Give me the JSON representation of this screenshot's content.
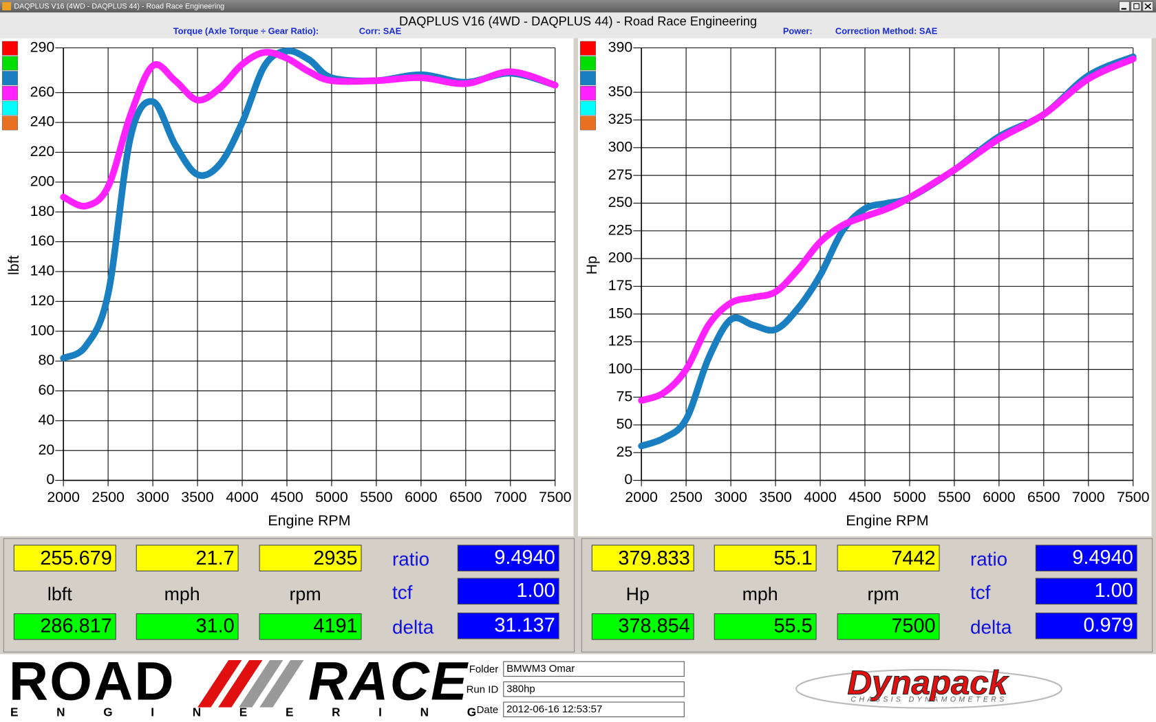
{
  "window": {
    "title": "DAQPLUS V16 (4WD - DAQPLUS 44) - Road Race Engineering"
  },
  "header": {
    "title": "DAQPLUS V16 (4WD - DAQPLUS 44) - Road Race Engineering"
  },
  "chart_data": [
    {
      "type": "line",
      "subtitle": "Torque (Axle Torque ÷ Gear Ratio):",
      "correction": "Corr: SAE",
      "x_label": "Engine RPM",
      "y_label": "lbft",
      "x": [
        2000,
        2250,
        2500,
        2750,
        3000,
        3250,
        3500,
        3750,
        4000,
        4250,
        4500,
        4750,
        5000,
        5500,
        6000,
        6500,
        7000,
        7500
      ],
      "series": [
        {
          "color": "#1a7fc0",
          "values": [
            82,
            90,
            125,
            230,
            254,
            225,
            205,
            212,
            240,
            278,
            288,
            282,
            270,
            268,
            272,
            267,
            273,
            265
          ]
        },
        {
          "color": "#ff22ff",
          "values": [
            190,
            184,
            197,
            245,
            278,
            268,
            255,
            263,
            279,
            287,
            283,
            274,
            268,
            268,
            270,
            266,
            274,
            265
          ]
        }
      ],
      "legend_colors": [
        "#ff0000",
        "#00dd00",
        "#1a7fc0",
        "#ff22ff",
        "#00ffff",
        "#e87020"
      ],
      "xlim": [
        2000,
        7500
      ],
      "xticks": [
        2000,
        2500,
        3000,
        3500,
        4000,
        4500,
        5000,
        5500,
        6000,
        6500,
        7000,
        7500
      ],
      "ylim": [
        0,
        290
      ],
      "yticks": [
        0,
        20,
        40,
        60,
        80,
        100,
        120,
        140,
        160,
        180,
        200,
        220,
        240,
        260,
        290
      ],
      "grid": true
    },
    {
      "type": "line",
      "subtitle": "Power:",
      "correction": "Correction Method: SAE",
      "x_label": "Engine RPM",
      "y_label": "Hp",
      "x": [
        2000,
        2250,
        2500,
        2750,
        3000,
        3250,
        3500,
        3750,
        4000,
        4250,
        4500,
        4750,
        5000,
        5500,
        6000,
        6500,
        7000,
        7500
      ],
      "series": [
        {
          "color": "#1a7fc0",
          "values": [
            31,
            38,
            55,
            110,
            145,
            140,
            136,
            155,
            185,
            225,
            245,
            250,
            255,
            280,
            310,
            330,
            365,
            382
          ]
        },
        {
          "color": "#ff22ff",
          "values": [
            72,
            79,
            100,
            140,
            160,
            165,
            170,
            190,
            215,
            230,
            238,
            245,
            255,
            280,
            308,
            330,
            362,
            380
          ]
        }
      ],
      "legend_colors": [
        "#ff0000",
        "#00dd00",
        "#1a7fc0",
        "#ff22ff",
        "#00ffff",
        "#e87020"
      ],
      "xlim": [
        2000,
        7500
      ],
      "xticks": [
        2000,
        2500,
        3000,
        3500,
        4000,
        4500,
        5000,
        5500,
        6000,
        6500,
        7000,
        7500
      ],
      "ylim": [
        0,
        390
      ],
      "yticks": [
        0,
        25,
        50,
        75,
        100,
        125,
        150,
        175,
        200,
        225,
        250,
        275,
        300,
        325,
        350,
        390
      ],
      "grid": true
    }
  ],
  "readouts": [
    {
      "top": [
        "255.679",
        "21.7",
        "2935"
      ],
      "units": [
        "lbft",
        "mph",
        "rpm"
      ],
      "bottom": [
        "286.817",
        "31.0",
        "4191"
      ],
      "factors": [
        {
          "label": "ratio",
          "value": "9.4940"
        },
        {
          "label": "tcf",
          "value": "1.00"
        },
        {
          "label": "delta",
          "value": "31.137"
        }
      ]
    },
    {
      "top": [
        "379.833",
        "55.1",
        "7442"
      ],
      "units": [
        "Hp",
        "mph",
        "rpm"
      ],
      "bottom": [
        "378.854",
        "55.5",
        "7500"
      ],
      "factors": [
        {
          "label": "ratio",
          "value": "9.4940"
        },
        {
          "label": "tcf",
          "value": "1.00"
        },
        {
          "label": "delta",
          "value": "0.979"
        }
      ]
    }
  ],
  "footer": {
    "logo": {
      "left": "ROAD",
      "right": "RACE",
      "tagline": "ENGINEERING"
    },
    "fields": [
      {
        "label": "Folder",
        "value": "BMWM3 Omar"
      },
      {
        "label": "Run ID",
        "value": "380hp"
      },
      {
        "label": "Date",
        "value": "2012-06-16 12:53:57"
      }
    ],
    "brand": {
      "name": "Dynapack",
      "tagline": "CHASSIS DYNAMOMETERS"
    }
  }
}
